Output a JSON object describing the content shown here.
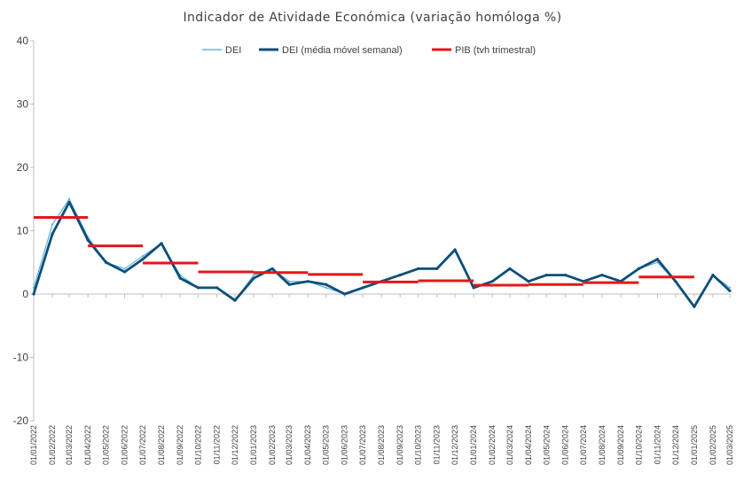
{
  "chart_data": {
    "type": "line",
    "title": "Indicador de Atividade Económica (variação homóloga %)",
    "xlabel": "",
    "ylabel": "",
    "ylim": [
      -20,
      40
    ],
    "yticks": [
      -20,
      -10,
      0,
      10,
      20,
      30,
      40
    ],
    "xlim": [
      "01/01/2022",
      "01/03/2025"
    ],
    "xticks": [
      "01/01/2022",
      "01/02/2022",
      "01/03/2022",
      "01/04/2022",
      "01/05/2022",
      "01/06/2022",
      "01/07/2022",
      "01/08/2022",
      "01/09/2022",
      "01/10/2022",
      "01/11/2022",
      "01/12/2022",
      "01/01/2023",
      "01/02/2023",
      "01/03/2023",
      "01/04/2023",
      "01/05/2023",
      "01/06/2023",
      "01/07/2023",
      "01/08/2023",
      "01/09/2023",
      "01/10/2023",
      "01/11/2023",
      "01/12/2023",
      "01/01/2024",
      "01/02/2024",
      "01/03/2024",
      "01/04/2024",
      "01/05/2024",
      "01/06/2024",
      "01/07/2024",
      "01/08/2024",
      "01/09/2024",
      "01/10/2024",
      "01/11/2024",
      "01/12/2024",
      "01/01/2025",
      "01/02/2025",
      "01/03/2025"
    ],
    "grid": false,
    "legend_position": "top-center",
    "series": [
      {
        "name": "DEI",
        "color": "#41A6D9",
        "style": "thin-line",
        "x": [
          "01/01/2022",
          "01/02/2022",
          "01/03/2022",
          "01/04/2022",
          "01/05/2022",
          "01/06/2022",
          "01/07/2022",
          "01/08/2022",
          "01/09/2022",
          "01/10/2022",
          "01/11/2022",
          "01/12/2022",
          "01/01/2023",
          "01/02/2023",
          "01/03/2023",
          "01/04/2023",
          "01/05/2023",
          "01/06/2023",
          "01/07/2023",
          "01/08/2023",
          "01/09/2023",
          "01/10/2023",
          "01/11/2023",
          "01/12/2023",
          "01/01/2024",
          "01/02/2024",
          "01/03/2024",
          "01/04/2024",
          "01/05/2024",
          "01/06/2024",
          "01/07/2024",
          "01/08/2024",
          "01/09/2024",
          "01/10/2024",
          "01/11/2024",
          "01/12/2024",
          "01/01/2025",
          "01/02/2025",
          "01/03/2025"
        ],
        "values": [
          1,
          11,
          15,
          9,
          5,
          4,
          6,
          8,
          3,
          1,
          1,
          -1,
          3,
          4,
          2,
          2,
          1,
          0,
          1,
          2,
          3,
          4,
          4,
          7,
          1,
          2,
          4,
          2,
          3,
          3,
          2,
          3,
          2,
          4,
          5,
          2,
          -2,
          3,
          1
        ]
      },
      {
        "name": "DEI (média móvel semanal)",
        "color": "#0B4F7A",
        "style": "thick-line",
        "x": [
          "01/01/2022",
          "01/02/2022",
          "01/03/2022",
          "01/04/2022",
          "01/05/2022",
          "01/06/2022",
          "01/07/2022",
          "01/08/2022",
          "01/09/2022",
          "01/10/2022",
          "01/11/2022",
          "01/12/2022",
          "01/01/2023",
          "01/02/2023",
          "01/03/2023",
          "01/04/2023",
          "01/05/2023",
          "01/06/2023",
          "01/07/2023",
          "01/08/2023",
          "01/09/2023",
          "01/10/2023",
          "01/11/2023",
          "01/12/2023",
          "01/01/2024",
          "01/02/2024",
          "01/03/2024",
          "01/04/2024",
          "01/05/2024",
          "01/06/2024",
          "01/07/2024",
          "01/08/2024",
          "01/09/2024",
          "01/10/2024",
          "01/11/2024",
          "01/12/2024",
          "01/01/2025",
          "01/02/2025",
          "01/03/2025"
        ],
        "values": [
          0,
          9.5,
          14.5,
          8.5,
          5,
          3.5,
          5.5,
          8,
          2.5,
          1,
          1,
          -1,
          2.5,
          4,
          1.5,
          2,
          1.5,
          0,
          1,
          2,
          3,
          4,
          4,
          7,
          1,
          2,
          4,
          2,
          3,
          3,
          2,
          3,
          2,
          4,
          5.5,
          2,
          -2,
          3,
          0.5
        ]
      },
      {
        "name": "PIB (tvh trimestral)",
        "color": "#E4161B",
        "style": "step",
        "segments": [
          {
            "start": "01/01/2022",
            "end": "01/04/2022",
            "value": 12.1
          },
          {
            "start": "01/04/2022",
            "end": "01/07/2022",
            "value": 7.6
          },
          {
            "start": "01/07/2022",
            "end": "01/10/2022",
            "value": 4.9
          },
          {
            "start": "01/10/2022",
            "end": "01/01/2023",
            "value": 3.5
          },
          {
            "start": "01/01/2023",
            "end": "01/04/2023",
            "value": 3.4
          },
          {
            "start": "01/04/2023",
            "end": "01/07/2023",
            "value": 3.1
          },
          {
            "start": "01/07/2023",
            "end": "01/10/2023",
            "value": 1.9
          },
          {
            "start": "01/10/2023",
            "end": "01/01/2024",
            "value": 2.1
          },
          {
            "start": "01/01/2024",
            "end": "01/04/2024",
            "value": 1.4
          },
          {
            "start": "01/04/2024",
            "end": "01/07/2024",
            "value": 1.5
          },
          {
            "start": "01/07/2024",
            "end": "01/10/2024",
            "value": 1.8
          },
          {
            "start": "01/10/2024",
            "end": "01/01/2025",
            "value": 2.7
          }
        ]
      }
    ]
  }
}
